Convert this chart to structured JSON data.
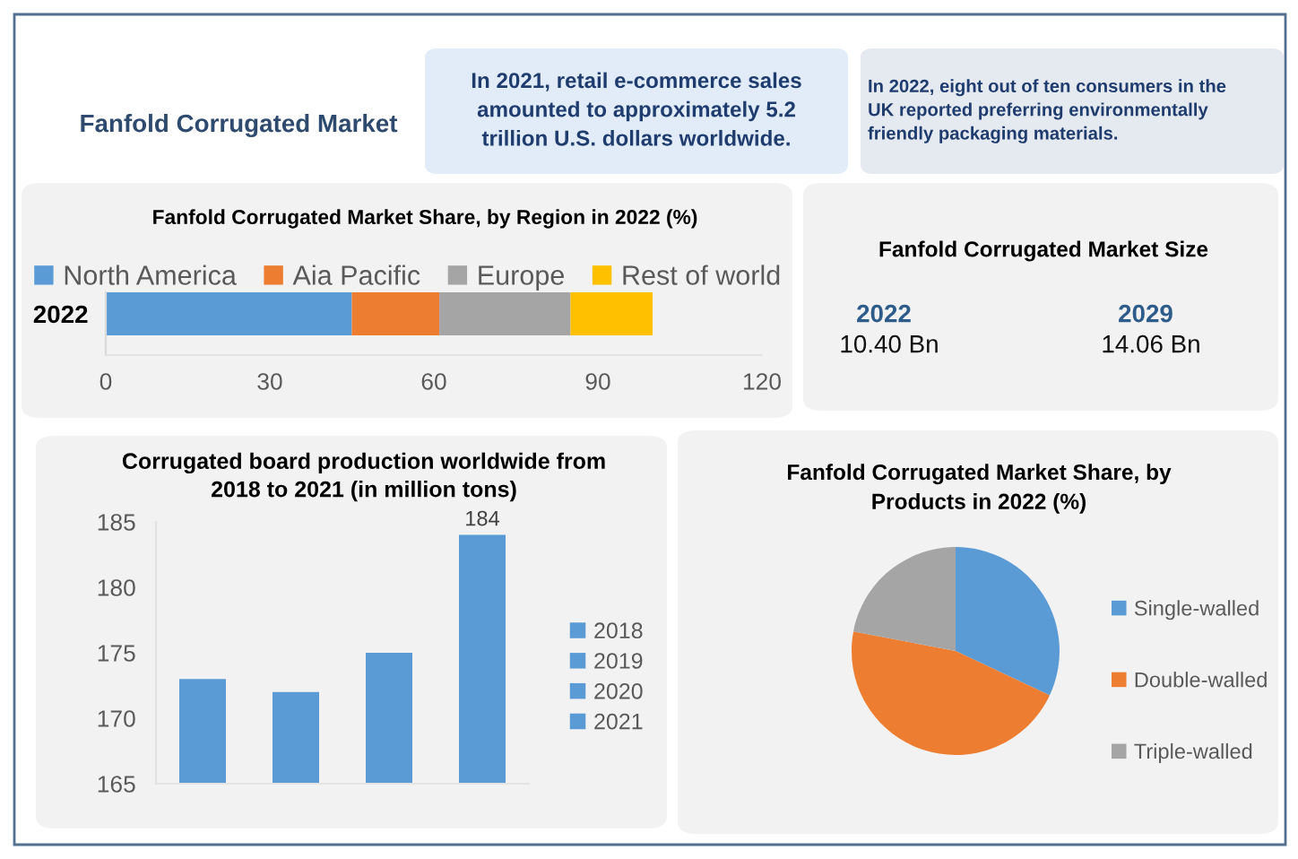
{
  "chart_data": [
    {
      "type": "other",
      "title": "Fanfold Corrugated Market",
      "annotations": [
        "In 2021, retail e-commerce sales\namounted to approximately 5.2\ntrillion U.S. dollars worldwide.",
        "In 2022, eight out of ten consumers in the\nUK reported preferring environmentally\nfriendly packaging materials."
      ]
    },
    {
      "type": "bar",
      "orientation": "horizontal",
      "stacked": true,
      "title": "Fanfold Corrugated Market Share, by Region in 2022 (%)",
      "categories": [
        "2022"
      ],
      "series": [
        {
          "name": "North America",
          "color": "#5b9bd5",
          "values": [
            45
          ]
        },
        {
          "name": "Aia Pacific",
          "color": "#ed7d31",
          "values": [
            16
          ]
        },
        {
          "name": "Europe",
          "color": "#a5a5a5",
          "values": [
            24
          ]
        },
        {
          "name": "Rest of world",
          "color": "#ffc000",
          "values": [
            15
          ]
        }
      ],
      "xlim": [
        0,
        120
      ],
      "xticks": [
        0,
        30,
        60,
        90,
        120
      ],
      "legend": "top"
    },
    {
      "type": "other",
      "title": "Fanfold Corrugated Market Size",
      "categories": [
        "2022",
        "2029"
      ],
      "value_labels": [
        "10.40 Bn",
        "14.06 Bn"
      ]
    },
    {
      "type": "bar",
      "title": "Corrugated board production worldwide from\n2018 to 2021 (in million tons)",
      "categories": [
        null,
        null,
        null,
        null
      ],
      "series": [
        {
          "name": "2018",
          "color": "#5b9bd5",
          "values": [
            173,
            null,
            null,
            null
          ]
        },
        {
          "name": "2019",
          "color": "#5b9bd5",
          "values": [
            null,
            172,
            null,
            null
          ]
        },
        {
          "name": "2020",
          "color": "#5b9bd5",
          "values": [
            null,
            null,
            175,
            null
          ]
        },
        {
          "name": "2021",
          "color": "#5b9bd5",
          "values": [
            null,
            null,
            null,
            184
          ],
          "value_labels": [
            null,
            null,
            null,
            "184"
          ]
        }
      ],
      "ylim": [
        165,
        185
      ],
      "yticks": [
        165,
        170,
        175,
        180,
        185
      ],
      "legend": "right"
    },
    {
      "type": "pie",
      "title": "Fanfold Corrugated Market Share, by\nProducts in 2022 (%)",
      "categories": [
        "Single-walled",
        "Double-walled",
        "Triple-walled"
      ],
      "values": [
        32,
        46,
        22
      ],
      "colors": [
        "#5b9bd5",
        "#ed7d31",
        "#a5a5a5"
      ],
      "legend": "right"
    }
  ]
}
